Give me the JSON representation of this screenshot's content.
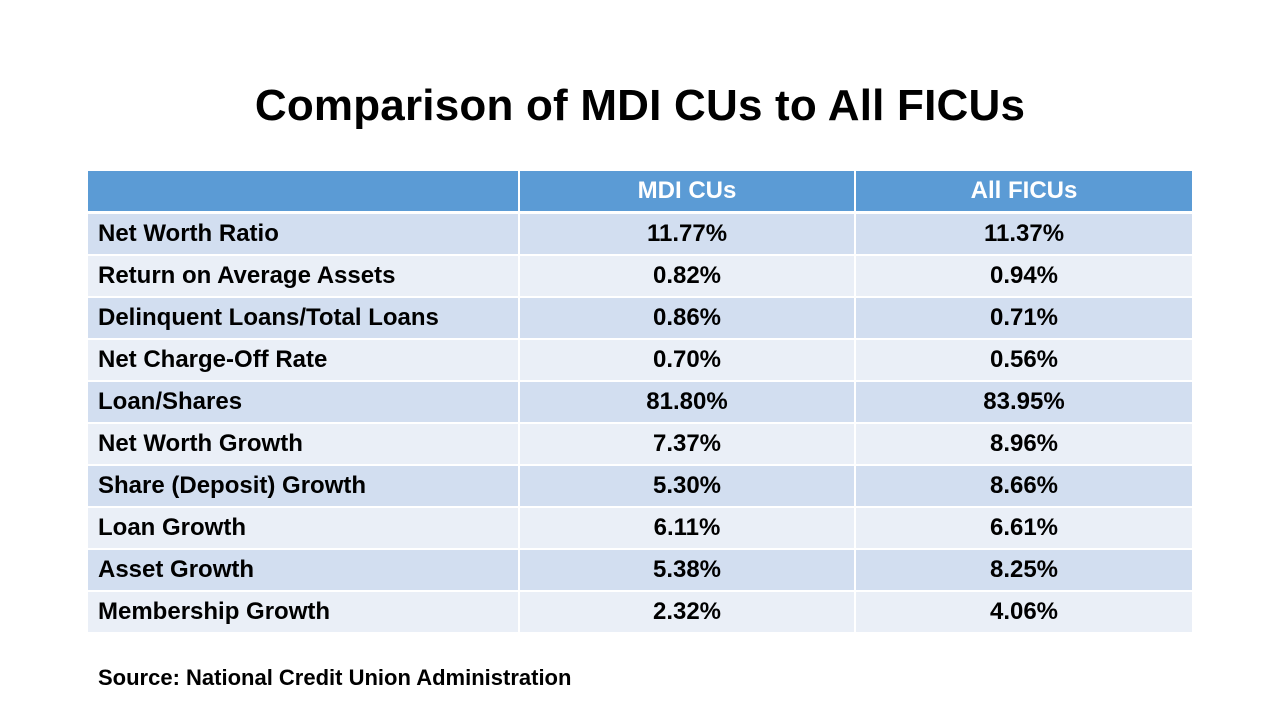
{
  "slide": {
    "title": "Comparison of MDI CUs to All FICUs",
    "source": "Source: National Credit Union Administration"
  },
  "table": {
    "headers": [
      "",
      "MDI CUs",
      "All FICUs"
    ],
    "rows": [
      {
        "metric": "Net Worth Ratio",
        "mdi": "11.77%",
        "all": "11.37%"
      },
      {
        "metric": "Return on Average Assets",
        "mdi": "0.82%",
        "all": "0.94%"
      },
      {
        "metric": "Delinquent Loans/Total Loans",
        "mdi": "0.86%",
        "all": "0.71%"
      },
      {
        "metric": "Net Charge-Off Rate",
        "mdi": "0.70%",
        "all": "0.56%"
      },
      {
        "metric": "Loan/Shares",
        "mdi": "81.80%",
        "all": "83.95%"
      },
      {
        "metric": "Net Worth Growth",
        "mdi": "7.37%",
        "all": "8.96%"
      },
      {
        "metric": "Share (Deposit) Growth",
        "mdi": "5.30%",
        "all": "8.66%"
      },
      {
        "metric": "Loan Growth",
        "mdi": "6.11%",
        "all": "6.61%"
      },
      {
        "metric": "Asset Growth",
        "mdi": "5.38%",
        "all": "8.25%"
      },
      {
        "metric": "Membership Growth",
        "mdi": "2.32%",
        "all": "4.06%"
      }
    ]
  },
  "colors": {
    "header_bg": "#5b9bd5",
    "row_dark": "#d2def0",
    "row_light": "#eaeff7"
  }
}
